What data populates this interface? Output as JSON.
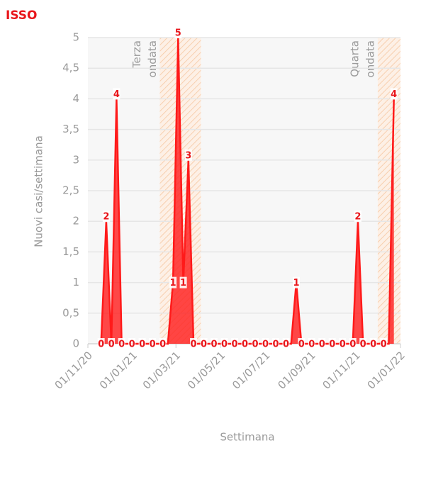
{
  "chart_data": {
    "type": "area",
    "title": "ISSO",
    "y_label": "Nuovi casi/settimana",
    "x_label": "Settimana",
    "x": [
      "19/11/20",
      "26/11/20",
      "03/12/20",
      "10/12/20",
      "17/12/20",
      "24/12/20",
      "31/12/20",
      "07/01/21",
      "14/01/21",
      "21/01/21",
      "28/01/21",
      "04/02/21",
      "11/02/21",
      "18/02/21",
      "25/02/21",
      "04/03/21",
      "11/03/21",
      "18/03/21",
      "25/03/21",
      "01/04/21",
      "08/04/21",
      "15/04/21",
      "22/04/21",
      "29/04/21",
      "06/05/21",
      "13/05/21",
      "20/05/21",
      "27/05/21",
      "03/06/21",
      "10/06/21",
      "17/06/21",
      "24/06/21",
      "01/07/21",
      "08/07/21",
      "15/07/21",
      "22/07/21",
      "29/07/21",
      "05/08/21",
      "12/08/21",
      "19/08/21",
      "26/08/21",
      "02/09/21",
      "09/09/21",
      "16/09/21",
      "23/09/21",
      "30/09/21",
      "07/10/21",
      "14/10/21",
      "21/10/21",
      "28/10/21",
      "04/11/21",
      "11/11/21",
      "18/11/21",
      "25/11/21",
      "02/12/21",
      "09/12/21",
      "16/12/21",
      "23/12/21"
    ],
    "values": [
      0,
      2,
      0,
      4,
      0,
      0,
      0,
      0,
      0,
      0,
      0,
      0,
      0,
      0,
      1,
      5,
      1,
      3,
      0,
      0,
      0,
      0,
      0,
      0,
      0,
      0,
      0,
      0,
      0,
      0,
      0,
      0,
      0,
      0,
      0,
      0,
      0,
      0,
      1,
      0,
      0,
      0,
      0,
      0,
      0,
      0,
      0,
      0,
      0,
      0,
      2,
      0,
      0,
      0,
      0,
      0,
      0,
      4
    ],
    "color": "#ff1a1a",
    "xlim": [
      "01/11/20",
      "01/01/22"
    ],
    "xticks": [
      "01/11/20",
      "01/01/21",
      "01/03/21",
      "01/05/21",
      "01/07/21",
      "01/09/21",
      "01/11/21",
      "01/01/22"
    ],
    "ylim": [
      0,
      5
    ],
    "yticks": [
      0,
      {
        "value": 0.5,
        "label": "0,5"
      },
      1,
      {
        "value": 1.5,
        "label": "1,5"
      },
      2,
      {
        "value": 2.5,
        "label": "2,5"
      },
      3,
      {
        "value": 3.5,
        "label": "3,5"
      },
      4,
      {
        "value": 4.5,
        "label": "4,5"
      },
      5
    ],
    "grid": true,
    "bands": [
      {
        "start": "07/02/21",
        "end": "04/04/21",
        "label": [
          "Terza",
          "ondata"
        ]
      },
      {
        "start": "01/12/21",
        "end": "01/01/22",
        "label": [
          "Quarta",
          "ondata"
        ]
      }
    ]
  }
}
